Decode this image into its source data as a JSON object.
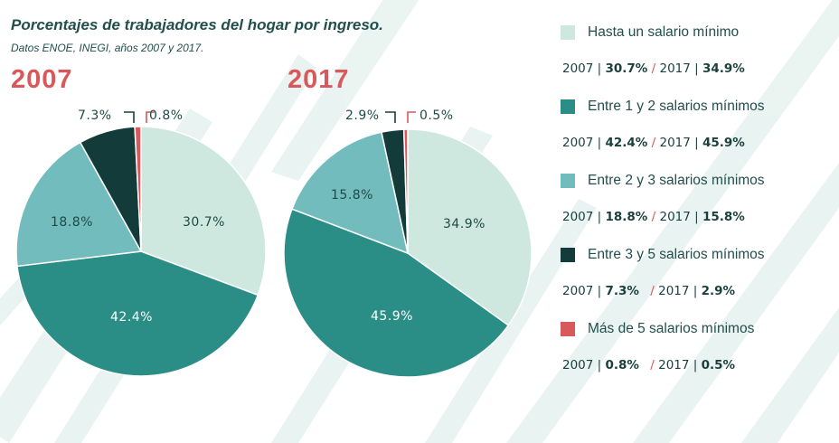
{
  "title": "Porcentajes de trabajadores del hogar por ingreso.",
  "subtitle": "Datos ENOE, INEGI, años 2007 y 2017.",
  "colors": {
    "c1": "#cfe8df",
    "c2": "#2b8e86",
    "c3": "#72bcbd",
    "c4": "#123b3a",
    "c5": "#d9585b"
  },
  "chart_data": [
    {
      "type": "pie",
      "title": "2007",
      "categories": [
        "Hasta un salario mínimo",
        "Entre 1 y 2 salarios mínimos",
        "Entre 2 y 3 salarios mínimos",
        "Entre 3 y 5 salarios mínimos",
        "Más de 5 salarios mínimos"
      ],
      "values": [
        30.7,
        42.4,
        18.8,
        7.3,
        0.8
      ],
      "labels": [
        "30.7%",
        "42.4%",
        "18.8%",
        "7.3%",
        "0.8%"
      ]
    },
    {
      "type": "pie",
      "title": "2017",
      "categories": [
        "Hasta un salario mínimo",
        "Entre 1 y 2 salarios mínimos",
        "Entre 2 y 3 salarios mínimos",
        "Entre 3 y 5 salarios mínimos",
        "Más de 5 salarios mínimos"
      ],
      "values": [
        34.9,
        45.9,
        15.8,
        2.9,
        0.5
      ],
      "labels": [
        "34.9%",
        "45.9%",
        "15.8%",
        "2.9%",
        "0.5%"
      ]
    }
  ],
  "legend": [
    {
      "label": "Hasta un salario mínimo",
      "y2007_label": "2007 |",
      "v2007": "30.7%",
      "y2017_label": "2017 |",
      "v2017": "34.9%"
    },
    {
      "label": "Entre 1 y 2 salarios mínimos",
      "y2007_label": "2007 |",
      "v2007": "42.4%",
      "y2017_label": "2017 |",
      "v2017": "45.9%"
    },
    {
      "label": "Entre 2 y 3 salarios mínimos",
      "y2007_label": "2007 |",
      "v2007": "18.8%",
      "y2017_label": "2017 |",
      "v2017": "15.8%"
    },
    {
      "label": "Entre 3 y 5 salarios mínimos",
      "y2007_label": "2007 |",
      "v2007": "7.3%",
      "y2017_label": "2017 |",
      "v2017": "2.9%"
    },
    {
      "label": "Más de 5 salarios mínimos",
      "y2007_label": "2007 |",
      "v2007": "0.8%",
      "y2017_label": "2017 |",
      "v2017": "0.5%"
    }
  ],
  "slash": "/"
}
